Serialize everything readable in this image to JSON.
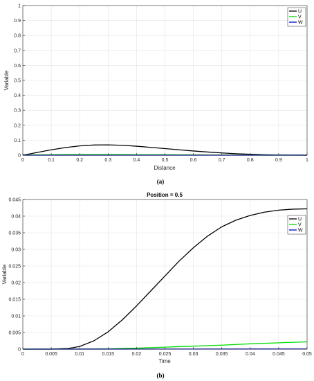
{
  "chart_data": [
    {
      "type": "line",
      "title": "",
      "caption": "(a)",
      "xlabel": "Distance",
      "ylabel": "Variable",
      "xlim": [
        0,
        1
      ],
      "ylim": [
        0,
        1
      ],
      "xticks": [
        "0",
        "0.1",
        "0.2",
        "0.3",
        "0.4",
        "0.5",
        "0.6",
        "0.7",
        "0.8",
        "0.9",
        "1"
      ],
      "yticks": [
        "0",
        "0.1",
        "0.2",
        "0.3",
        "0.4",
        "0.5",
        "0.6",
        "0.7",
        "0.8",
        "0.9",
        "1"
      ],
      "grid": true,
      "legend_position": "top-right",
      "series": [
        {
          "name": "U",
          "color": "#000000",
          "x": [
            0,
            0.05,
            0.1,
            0.15,
            0.2,
            0.25,
            0.3,
            0.35,
            0.4,
            0.45,
            0.5,
            0.55,
            0.6,
            0.65,
            0.7,
            0.75,
            0.8,
            0.85,
            0.9,
            0.95,
            1
          ],
          "y": [
            0,
            0.018,
            0.036,
            0.051,
            0.062,
            0.068,
            0.069,
            0.066,
            0.06,
            0.052,
            0.044,
            0.036,
            0.028,
            0.021,
            0.015,
            0.01,
            0.006,
            0.003,
            0.001,
            0.0005,
            0
          ]
        },
        {
          "name": "V",
          "color": "#00dd00",
          "x": [
            0,
            0.05,
            0.1,
            0.15,
            0.2,
            0.25,
            0.3,
            0.35,
            0.4,
            0.45,
            0.5,
            0.55,
            0.6,
            0.65,
            0.7,
            0.75,
            0.8,
            0.85,
            0.9,
            0.95,
            1
          ],
          "y": [
            0,
            0.002,
            0.003,
            0.004,
            0.004,
            0.004,
            0.004,
            0.004,
            0.003,
            0.003,
            0.003,
            0.002,
            0.002,
            0.001,
            0.001,
            0.001,
            0.0005,
            0.0003,
            0.0002,
            0.0001,
            0
          ]
        },
        {
          "name": "W",
          "color": "#0000cc",
          "x": [
            0,
            1
          ],
          "y": [
            0,
            0
          ]
        }
      ]
    },
    {
      "type": "line",
      "title": "Position = 0.5",
      "caption": "(b)",
      "xlabel": "Time",
      "ylabel": "Variable",
      "xlim": [
        0,
        0.05
      ],
      "ylim": [
        0,
        0.045
      ],
      "xticks": [
        "0",
        "0.005",
        "0.01",
        "0.015",
        "0.02",
        "0.025",
        "0.03",
        "0.035",
        "0.04",
        "0.045",
        "0.05"
      ],
      "yticks": [
        "0",
        "0.005",
        "0.01",
        "0.015",
        "0.02",
        "0.025",
        "0.03",
        "0.035",
        "0.04",
        "0.045"
      ],
      "grid": true,
      "legend_position": "top-right",
      "series": [
        {
          "name": "U",
          "color": "#000000",
          "x": [
            0,
            0.005,
            0.008,
            0.01,
            0.0125,
            0.015,
            0.0175,
            0.02,
            0.0225,
            0.025,
            0.0275,
            0.03,
            0.0325,
            0.035,
            0.0375,
            0.04,
            0.0425,
            0.045,
            0.0475,
            0.05
          ],
          "y": [
            0,
            1e-05,
            0.0002,
            0.0008,
            0.0025,
            0.0052,
            0.0088,
            0.013,
            0.0175,
            0.022,
            0.0265,
            0.0305,
            0.034,
            0.0368,
            0.0388,
            0.0402,
            0.0412,
            0.0418,
            0.0421,
            0.0422
          ]
        },
        {
          "name": "V",
          "color": "#00dd00",
          "x": [
            0,
            0.01,
            0.015,
            0.02,
            0.025,
            0.03,
            0.035,
            0.04,
            0.045,
            0.05
          ],
          "y": [
            0,
            2e-05,
            0.0001,
            0.0003,
            0.0006,
            0.0009,
            0.0012,
            0.0016,
            0.0019,
            0.0022
          ]
        },
        {
          "name": "W",
          "color": "#0000cc",
          "x": [
            0,
            0.05
          ],
          "y": [
            0,
            5e-05
          ]
        }
      ]
    }
  ]
}
